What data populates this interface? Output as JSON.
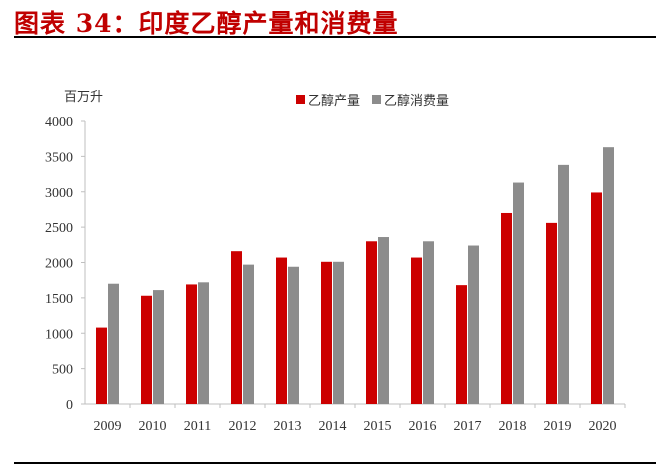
{
  "title": "图表 34：印度乙醇产量和消费量",
  "chart_data": {
    "type": "bar",
    "title": "图表 34：印度乙醇产量和消费量",
    "ylabel": "百万升",
    "xlabel": "",
    "ylim": [
      0,
      4000
    ],
    "yticks": [
      0,
      500,
      1000,
      1500,
      2000,
      2500,
      3000,
      3500,
      4000
    ],
    "grid": false,
    "legend": "top",
    "categories": [
      "2009",
      "2010",
      "2011",
      "2012",
      "2013",
      "2014",
      "2015",
      "2016",
      "2017",
      "2018",
      "2019",
      "2020"
    ],
    "series": [
      {
        "name": "乙醇产量",
        "color": "#cc0000",
        "values": [
          1080,
          1530,
          1690,
          2160,
          2070,
          2010,
          2300,
          2070,
          1680,
          2700,
          2560,
          2990
        ]
      },
      {
        "name": "乙醇消费量",
        "color": "#8c8c8c",
        "values": [
          1700,
          1610,
          1720,
          1970,
          1940,
          2010,
          2360,
          2300,
          2240,
          3130,
          3380,
          3630
        ]
      }
    ]
  }
}
